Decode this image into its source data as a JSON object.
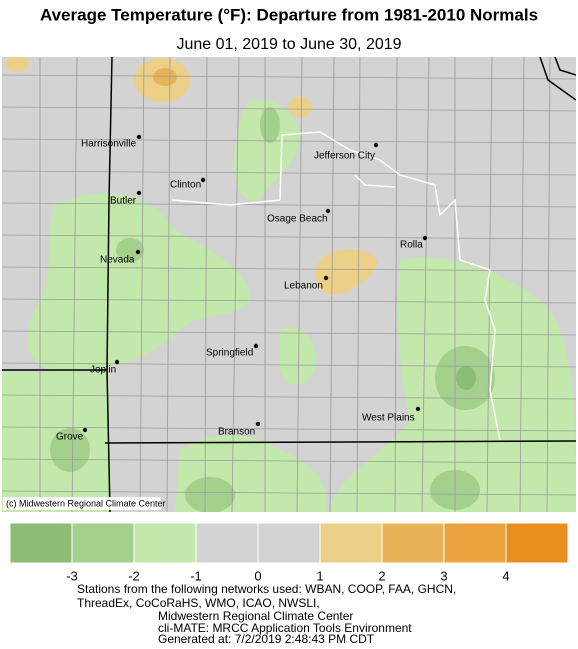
{
  "header": {
    "title": "Average Temperature (°F): Departure from 1981-2010 Normals",
    "subtitle": "June 01, 2019 to June 30, 2019"
  },
  "map": {
    "credit": "(c) Midwestern Regional Climate Center",
    "cities": [
      "Harrisonville",
      "Jefferson City",
      "Clinton",
      "Butler",
      "Osage Beach",
      "Rolla",
      "Nevada",
      "Lebanon",
      "Springfield",
      "Joplin",
      "West Plains",
      "Grove",
      "Branson"
    ]
  },
  "legend": {
    "colors": [
      "#8cbd76",
      "#a3d08c",
      "#c2e8ab",
      "#d3d3d3",
      "#d3d3d3",
      "#edd087",
      "#e8b45a",
      "#eba23f",
      "#e88f1f"
    ],
    "ticks": [
      -3,
      -2,
      -1,
      0,
      1,
      2,
      3,
      4
    ]
  },
  "footer": {
    "lines": [
      "Stations from the following networks used: WBAN, COOP, FAA, GHCN,",
      "ThreadEx, CoCoRaHS, WMO, ICAO, NWSLI,",
      "Midwestern Regional Climate Center",
      "cli-MATE: MRCC Application Tools Environment",
      "Generated at: 7/2/2019 2:48:43 PM CDT"
    ]
  }
}
